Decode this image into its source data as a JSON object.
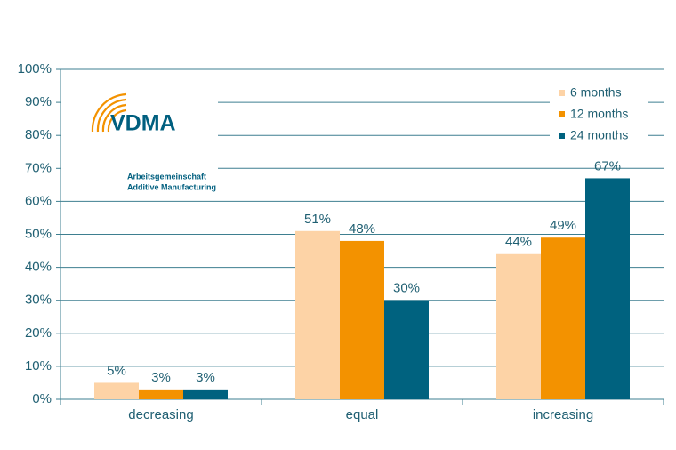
{
  "chart_data": {
    "type": "bar",
    "categories": [
      "decreasing",
      "equal",
      "increasing"
    ],
    "series": [
      {
        "name": "6 months",
        "color": "#fdd3a6",
        "values": [
          5,
          51,
          44
        ],
        "value_labels": [
          "5%",
          "51%",
          "44%"
        ]
      },
      {
        "name": "12 months",
        "color": "#f39200",
        "values": [
          3,
          48,
          49
        ],
        "value_labels": [
          "3%",
          "48%",
          "49%"
        ]
      },
      {
        "name": "24 months",
        "color": "#00627f",
        "values": [
          3,
          30,
          67
        ],
        "value_labels": [
          "3%",
          "30%",
          "67%"
        ]
      }
    ],
    "ylim": [
      0,
      100
    ],
    "yticks": [
      {
        "value": 0,
        "label": "0%"
      },
      {
        "value": 10,
        "label": "10%"
      },
      {
        "value": 20,
        "label": "20%"
      },
      {
        "value": 30,
        "label": "30%"
      },
      {
        "value": 40,
        "label": "40%"
      },
      {
        "value": 50,
        "label": "50%"
      },
      {
        "value": 60,
        "label": "60%"
      },
      {
        "value": 70,
        "label": "70%"
      },
      {
        "value": 80,
        "label": "80%"
      },
      {
        "value": 90,
        "label": "90%"
      },
      {
        "value": 100,
        "label": "100%"
      }
    ],
    "grid": true,
    "legend": "upper right",
    "logo": {
      "name": "VDMA",
      "lines": [
        "Arbeitsgemeinschaft",
        "Additive Manufacturing"
      ]
    }
  }
}
